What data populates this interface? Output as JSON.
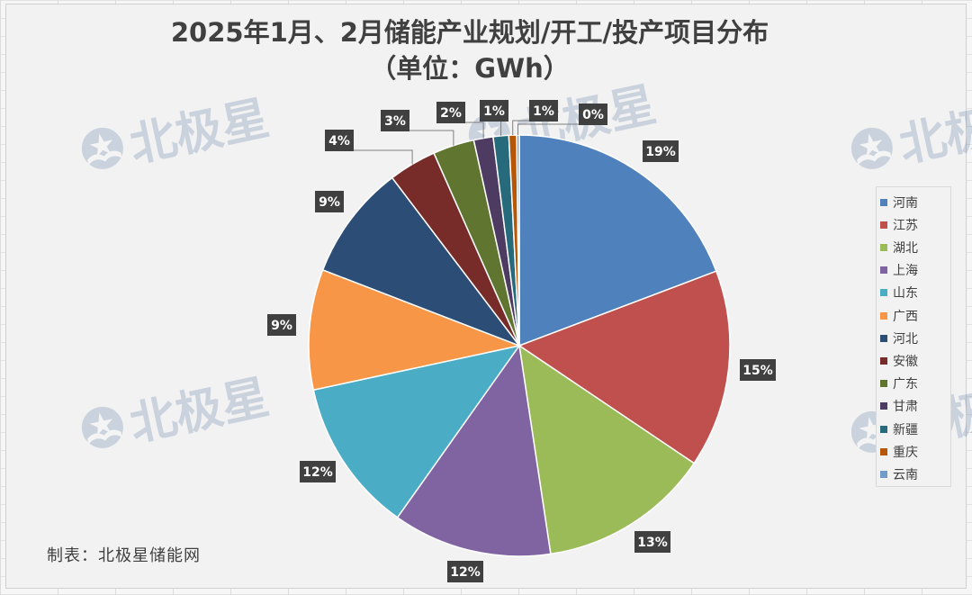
{
  "title": {
    "line1": "2025年1月、2月储能产业规划/开工/投产项目分布",
    "line2": "（单位：GWh）"
  },
  "credit": "制表：北极星储能网",
  "watermark": {
    "text": "北极星",
    "icon": "polaris-logo-icon"
  },
  "chart_data": {
    "type": "pie",
    "title": "2025年1月、2月储能产业规划/开工/投产项目分布（单位：GWh）",
    "unit": "GWh",
    "legend_position": "right",
    "labels_shown": [
      "19%",
      "15%",
      "13%",
      "12%",
      "12%",
      "9%",
      "9%",
      "4%",
      "3%",
      "2%",
      "1%",
      "1%",
      "0%"
    ],
    "slices": [
      {
        "name": "河南",
        "percent": 19.4,
        "label": "19%",
        "color": "#4f81bd"
      },
      {
        "name": "江苏",
        "percent": 15.3,
        "label": "15%",
        "color": "#c0504d"
      },
      {
        "name": "湖北",
        "percent": 13.3,
        "label": "13%",
        "color": "#9bbb59"
      },
      {
        "name": "上海",
        "percent": 12.3,
        "label": "12%",
        "color": "#8064a2"
      },
      {
        "name": "山东",
        "percent": 11.9,
        "label": "12%",
        "color": "#4bacc6"
      },
      {
        "name": "广西",
        "percent": 9.3,
        "label": "9%",
        "color": "#f79646"
      },
      {
        "name": "河北",
        "percent": 8.9,
        "label": "9%",
        "color": "#2c4d75"
      },
      {
        "name": "安徽",
        "percent": 3.7,
        "label": "4%",
        "color": "#772c2a"
      },
      {
        "name": "广东",
        "percent": 3.2,
        "label": "3%",
        "color": "#5f7530"
      },
      {
        "name": "甘肃",
        "percent": 1.5,
        "label": "2%",
        "color": "#4d3b62"
      },
      {
        "name": "新疆",
        "percent": 1.2,
        "label": "1%",
        "color": "#276a7c"
      },
      {
        "name": "重庆",
        "percent": 0.6,
        "label": "1%",
        "color": "#b65708"
      },
      {
        "name": "云南",
        "percent": 0.2,
        "label": "0%",
        "color": "#729aca"
      }
    ]
  }
}
